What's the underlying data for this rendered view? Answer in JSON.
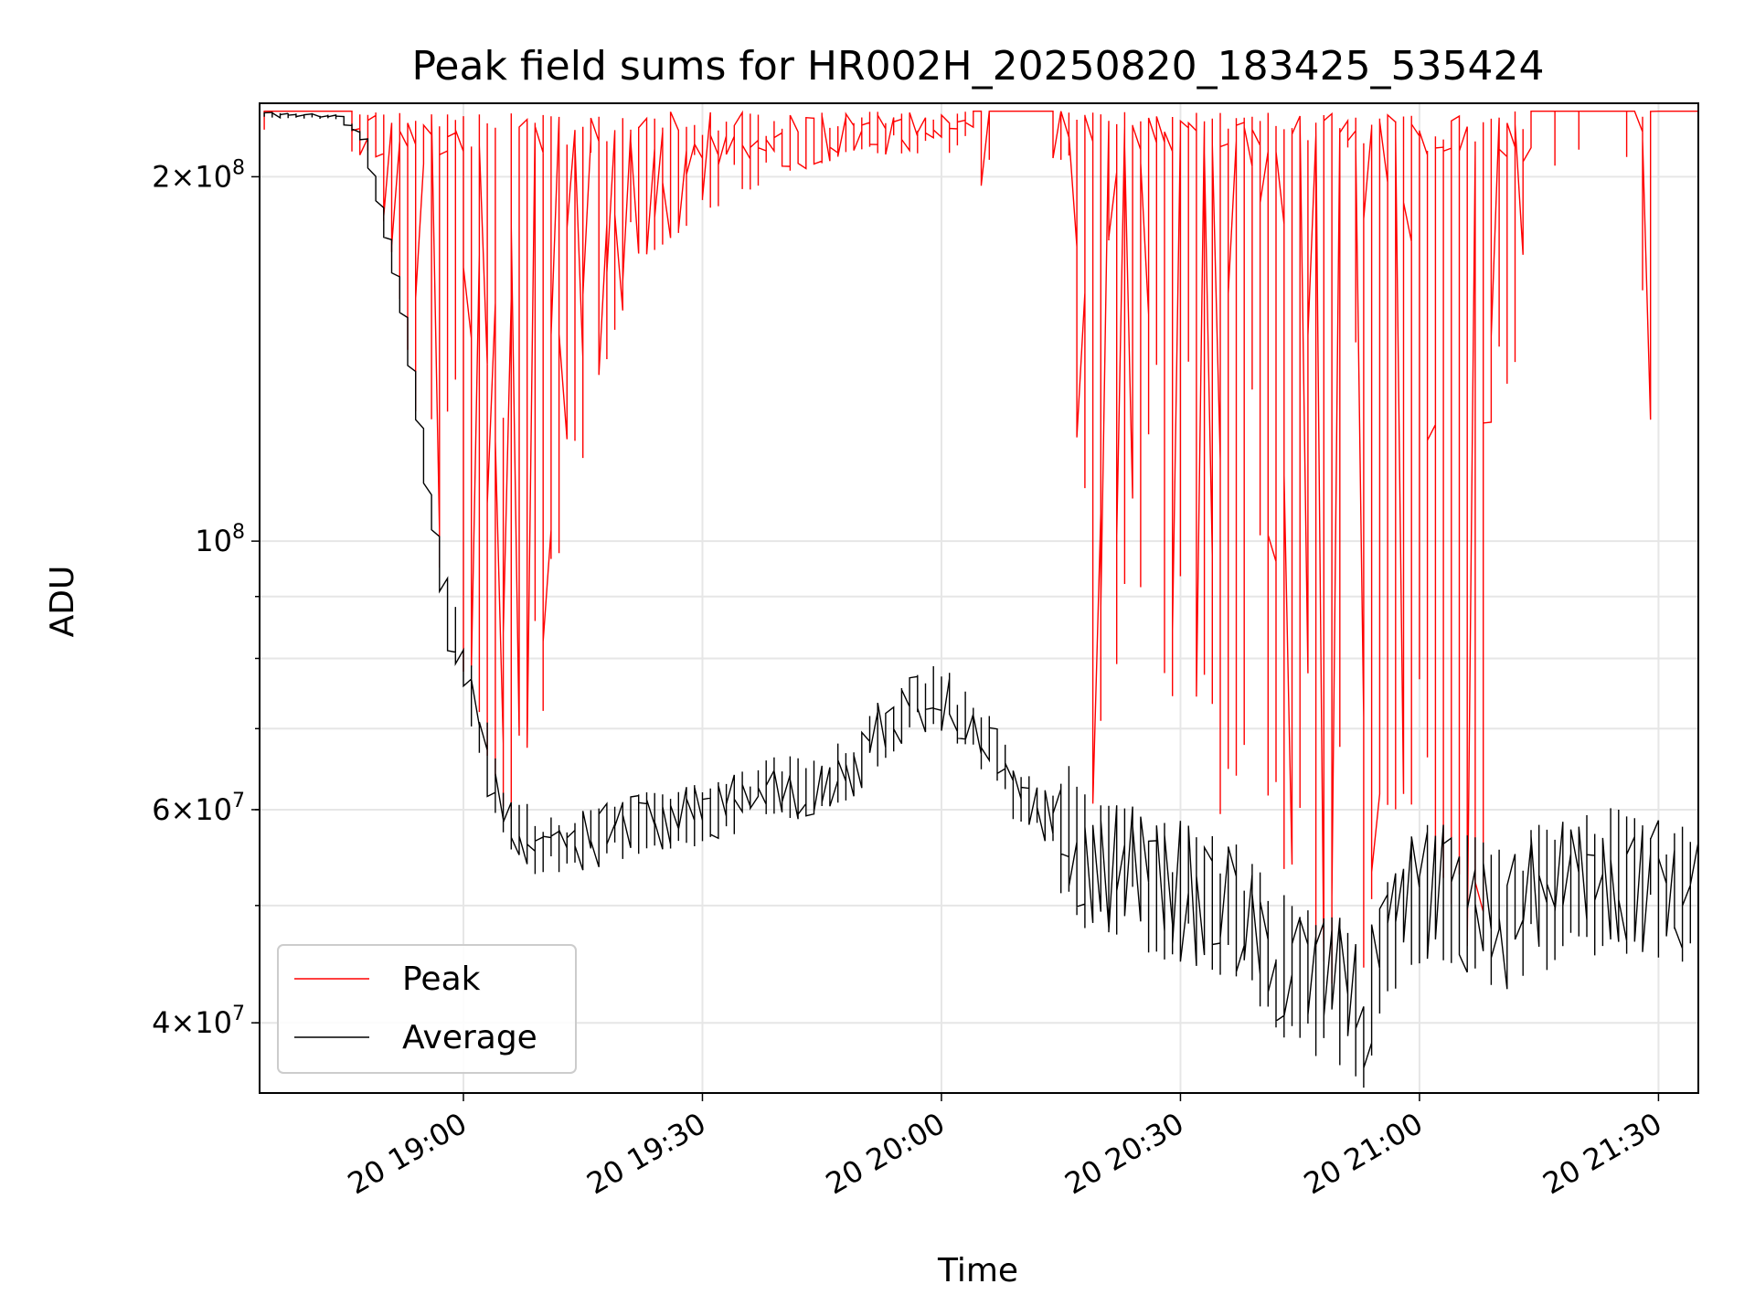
{
  "chart_data": {
    "type": "line",
    "title": "Peak field sums for HR002H_20250820_183425_535424",
    "xlabel": "Time",
    "ylabel": "ADU",
    "yscale": "log",
    "ylim": [
      35000000,
      230000000
    ],
    "xlim": [
      "2025-08-20 18:34:25",
      "2025-08-20 21:35:00"
    ],
    "x_tick_labels": [
      "20 19:00",
      "20 19:30",
      "20 20:00",
      "20 20:30",
      "20 21:00",
      "20 21:30"
    ],
    "x_tick_times": [
      "2025-08-20 19:00",
      "2025-08-20 19:30",
      "2025-08-20 20:00",
      "2025-08-20 20:30",
      "2025-08-20 21:00",
      "2025-08-20 21:30"
    ],
    "y_tick_labels": [
      {
        "value": 40000000,
        "mantissa": "4",
        "exp": "7"
      },
      {
        "value": 60000000,
        "mantissa": "6",
        "exp": "7"
      },
      {
        "value": 100000000,
        "mantissa": "",
        "exp": "8"
      },
      {
        "value": 200000000,
        "mantissa": "2",
        "exp": "8"
      }
    ],
    "grid": true,
    "legend_position": "lower-left",
    "series": [
      {
        "name": "Peak",
        "color": "#ff0000",
        "points": [
          [
            "2025-08-20 18:35",
            225000000
          ],
          [
            "2025-08-20 18:45",
            224000000
          ],
          [
            "2025-08-20 18:48",
            215000000
          ],
          [
            "2025-08-20 18:50",
            190000000
          ],
          [
            "2025-08-20 18:52",
            165000000
          ],
          [
            "2025-08-20 18:54",
            140000000
          ],
          [
            "2025-08-20 18:56",
            110000000
          ],
          [
            "2025-08-20 18:58",
            92000000
          ],
          [
            "2025-08-20 19:00",
            80000000
          ],
          [
            "2025-08-20 19:02",
            72000000
          ],
          [
            "2025-08-20 19:04",
            64000000
          ],
          [
            "2025-08-20 19:06",
            58000000
          ],
          [
            "2025-08-20 19:08",
            60000000
          ],
          [
            "2025-08-20 19:10",
            69000000
          ],
          [
            "2025-08-20 19:12",
            90000000
          ],
          [
            "2025-08-20 19:15",
            110000000
          ],
          [
            "2025-08-20 19:20",
            155000000
          ],
          [
            "2025-08-20 19:25",
            175000000
          ],
          [
            "2025-08-20 19:30",
            185000000
          ],
          [
            "2025-08-20 19:40",
            200000000
          ],
          [
            "2025-08-20 19:50",
            210000000
          ],
          [
            "2025-08-20 20:00",
            218000000
          ],
          [
            "2025-08-20 20:10",
            222000000
          ],
          [
            "2025-08-20 20:16",
            225000000
          ],
          [
            "2025-08-20 20:18",
            115000000
          ],
          [
            "2025-08-20 20:20",
            58000000
          ],
          [
            "2025-08-20 20:25",
            90000000
          ],
          [
            "2025-08-20 20:30",
            70000000
          ],
          [
            "2025-08-20 20:35",
            55000000
          ],
          [
            "2025-08-20 20:40",
            65000000
          ],
          [
            "2025-08-20 20:45",
            48000000
          ],
          [
            "2025-08-20 20:50",
            42000000
          ],
          [
            "2025-08-20 20:53",
            38000000
          ],
          [
            "2025-08-20 20:56",
            60000000
          ],
          [
            "2025-08-20 21:00",
            60000000
          ],
          [
            "2025-08-20 21:05",
            48000000
          ],
          [
            "2025-08-20 21:08",
            44000000
          ],
          [
            "2025-08-20 21:10",
            150000000
          ],
          [
            "2025-08-20 21:12",
            120000000
          ],
          [
            "2025-08-20 21:15",
            225000000
          ],
          [
            "2025-08-20 21:28",
            225000000
          ],
          [
            "2025-08-20 21:29",
            118000000
          ],
          [
            "2025-08-20 21:30",
            225000000
          ],
          [
            "2025-08-20 21:35",
            225000000
          ]
        ]
      },
      {
        "name": "Average",
        "color": "#000000",
        "points": [
          [
            "2025-08-20 18:35",
            225000000
          ],
          [
            "2025-08-20 18:45",
            224000000
          ],
          [
            "2025-08-20 18:48",
            215000000
          ],
          [
            "2025-08-20 18:50",
            190000000
          ],
          [
            "2025-08-20 18:52",
            165000000
          ],
          [
            "2025-08-20 18:54",
            140000000
          ],
          [
            "2025-08-20 18:56",
            110000000
          ],
          [
            "2025-08-20 18:58",
            92000000
          ],
          [
            "2025-08-20 19:00",
            80000000
          ],
          [
            "2025-08-20 19:02",
            72000000
          ],
          [
            "2025-08-20 19:04",
            64000000
          ],
          [
            "2025-08-20 19:06",
            59000000
          ],
          [
            "2025-08-20 19:08",
            57500000
          ],
          [
            "2025-08-20 19:10",
            56000000
          ],
          [
            "2025-08-20 19:15",
            56500000
          ],
          [
            "2025-08-20 19:20",
            58000000
          ],
          [
            "2025-08-20 19:25",
            59000000
          ],
          [
            "2025-08-20 19:30",
            59500000
          ],
          [
            "2025-08-20 19:35",
            61000000
          ],
          [
            "2025-08-20 19:40",
            63000000
          ],
          [
            "2025-08-20 19:45",
            62000000
          ],
          [
            "2025-08-20 19:50",
            66000000
          ],
          [
            "2025-08-20 19:55",
            72000000
          ],
          [
            "2025-08-20 20:00",
            75000000
          ],
          [
            "2025-08-20 20:05",
            70000000
          ],
          [
            "2025-08-20 20:10",
            62000000
          ],
          [
            "2025-08-20 20:15",
            58000000
          ],
          [
            "2025-08-20 20:20",
            55000000
          ],
          [
            "2025-08-20 20:25",
            53000000
          ],
          [
            "2025-08-20 20:30",
            52000000
          ],
          [
            "2025-08-20 20:35",
            51000000
          ],
          [
            "2025-08-20 20:40",
            48000000
          ],
          [
            "2025-08-20 20:45",
            44000000
          ],
          [
            "2025-08-20 20:50",
            43000000
          ],
          [
            "2025-08-20 20:53",
            40000000
          ],
          [
            "2025-08-20 20:56",
            46000000
          ],
          [
            "2025-08-20 21:00",
            52000000
          ],
          [
            "2025-08-20 21:05",
            51000000
          ],
          [
            "2025-08-20 21:10",
            49000000
          ],
          [
            "2025-08-20 21:15",
            51000000
          ],
          [
            "2025-08-20 21:20",
            52000000
          ],
          [
            "2025-08-20 21:25",
            53000000
          ],
          [
            "2025-08-20 21:30",
            52000000
          ],
          [
            "2025-08-20 21:35",
            51000000
          ]
        ]
      }
    ]
  }
}
